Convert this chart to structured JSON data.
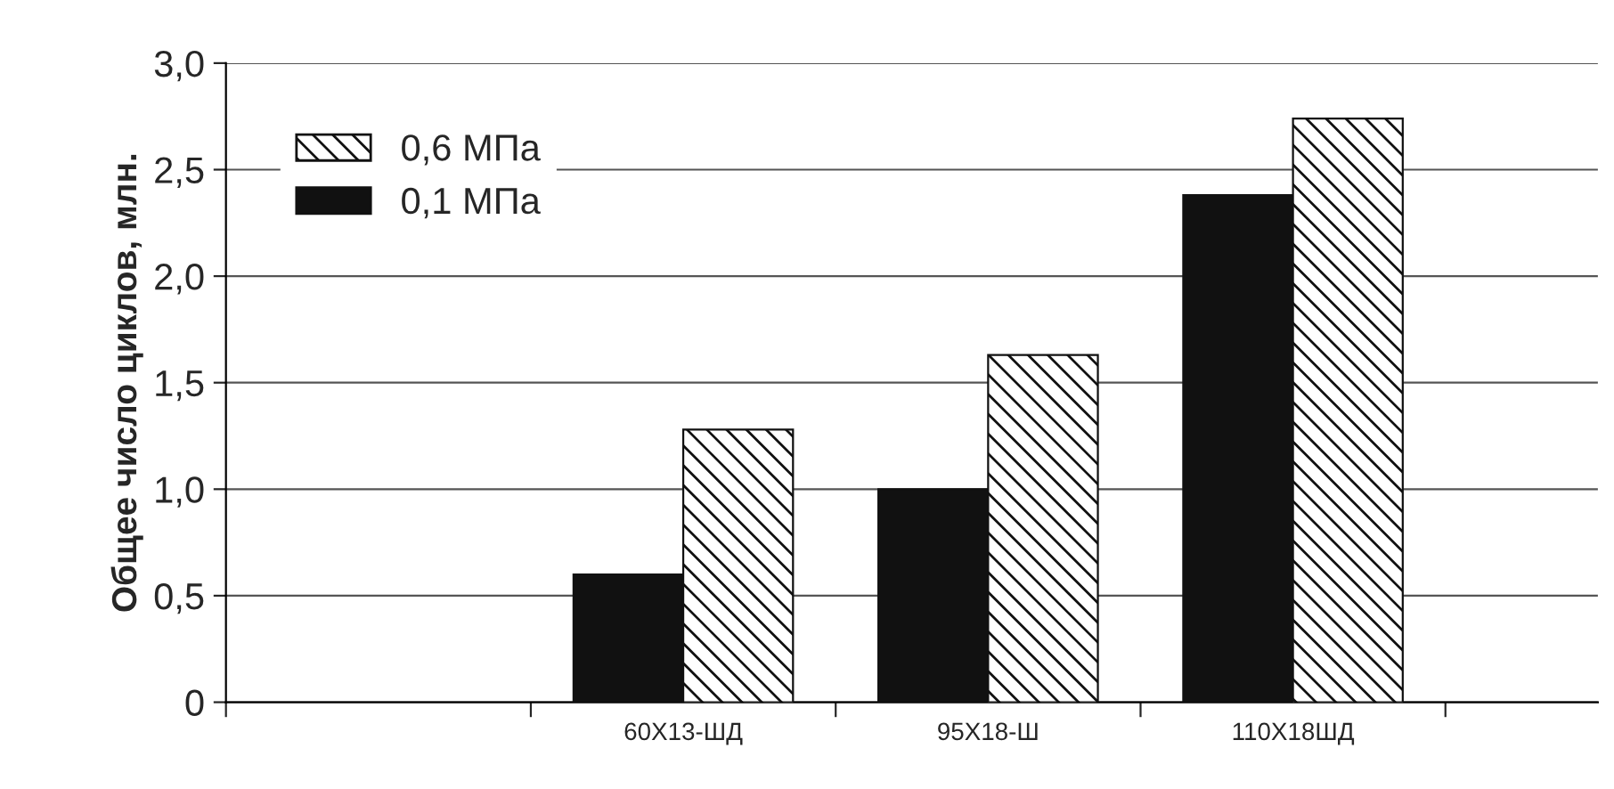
{
  "chart_data": {
    "type": "bar",
    "ylabel": "Общее число циклов, млн.",
    "categories": [
      null,
      "60Х13-ШД",
      "95Х18-Ш",
      "110Х18ШД"
    ],
    "series": [
      {
        "name": "0,1 МПа",
        "color": "#111111",
        "values": [
          null,
          0.6,
          1.0,
          2.38
        ]
      },
      {
        "name": "0,6 МПа",
        "color": "#111111",
        "values": [
          null,
          1.28,
          1.63,
          2.74
        ]
      }
    ],
    "ylim": [
      0,
      3.0
    ],
    "yticks": [
      {
        "value": 0,
        "label": "0"
      },
      {
        "value": 0.5,
        "label": "0,5"
      },
      {
        "value": 1.0,
        "label": "1,0"
      },
      {
        "value": 1.5,
        "label": "1,5"
      },
      {
        "value": 2.0,
        "label": "2,0"
      },
      {
        "value": 2.5,
        "label": "2,5"
      },
      {
        "value": 3.0,
        "label": "3,0"
      }
    ],
    "grid": "y",
    "legend": "top left"
  }
}
